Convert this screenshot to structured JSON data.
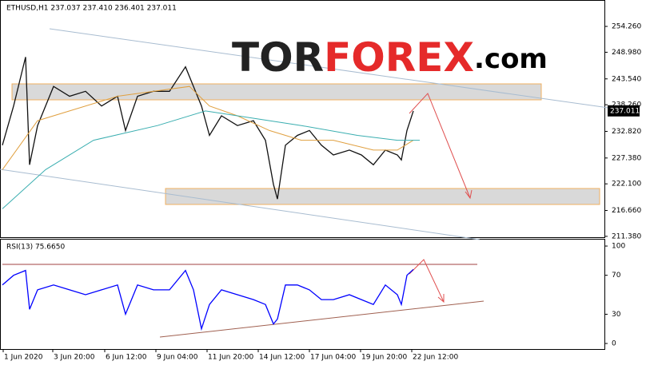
{
  "logo": {
    "parts": [
      "TOR",
      "FOREX",
      ".com"
    ]
  },
  "chart_data": [
    {
      "type": "line",
      "title": "ETHUSD,H1 237.037 237.410 236.401 237.011",
      "series": [
        {
          "color": "#111111",
          "x": [
            2,
            16,
            31,
            36,
            46,
            66,
            86,
            106,
            126,
            146,
            156,
            171,
            191,
            211,
            231,
            241,
            251,
            261,
            276,
            296,
            316,
            331,
            341,
            346,
            356,
            371,
            386,
            401,
            416,
            436,
            451,
            466,
            481,
            496,
            501,
            508,
            516
          ],
          "values": [
            230,
            238,
            248,
            226,
            234,
            242,
            240,
            241,
            238,
            240,
            233,
            240,
            241,
            241,
            246,
            242,
            238,
            232,
            236,
            234,
            235,
            231,
            222,
            219,
            230,
            232,
            233,
            230,
            228,
            229,
            228,
            226,
            229,
            228,
            227,
            233,
            237
          ]
        },
        {
          "color": "#e0a040",
          "x": [
            2,
            46,
            146,
            236,
            261,
            296,
            336,
            376,
            416,
            466,
            496,
            516
          ],
          "values": [
            225,
            235,
            240,
            242,
            238,
            236,
            233,
            231,
            231,
            229,
            229,
            231
          ]
        },
        {
          "color": "#3aaeb0",
          "x": [
            2,
            56,
            116,
            196,
            256,
            296,
            376,
            446,
            496,
            524
          ],
          "values": [
            217,
            225,
            231,
            234,
            237,
            236,
            234,
            232,
            231,
            231
          ]
        }
      ],
      "last_price": {
        "value": 237.011,
        "label": "237.011"
      },
      "xlim": [
        0,
        755
      ],
      "ylim": [
        211.2,
        259.0
      ],
      "yticks": [
        {
          "value": 254.26,
          "label": "254.260"
        },
        {
          "value": 248.98,
          "label": "248.980"
        },
        {
          "value": 243.54,
          "label": "243.540"
        },
        {
          "value": 238.26,
          "label": "238.260"
        },
        {
          "value": 232.82,
          "label": "232.820"
        },
        {
          "value": 227.38,
          "label": "227.380"
        },
        {
          "value": 222.1,
          "label": "222.100"
        },
        {
          "value": 216.66,
          "label": "216.660"
        },
        {
          "value": 211.38,
          "label": "211.380"
        }
      ]
    },
    {
      "type": "line",
      "title": "RSI(13) 75.6650",
      "series": [
        {
          "color": "#0000ff",
          "x": [
            2,
            16,
            31,
            36,
            46,
            66,
            86,
            106,
            126,
            146,
            156,
            171,
            191,
            211,
            231,
            241,
            251,
            261,
            276,
            296,
            316,
            331,
            341,
            346,
            356,
            371,
            386,
            401,
            416,
            436,
            451,
            466,
            481,
            496,
            501,
            508,
            516
          ],
          "values": [
            60,
            70,
            75,
            35,
            55,
            60,
            55,
            50,
            55,
            60,
            30,
            60,
            55,
            55,
            75,
            55,
            15,
            40,
            55,
            50,
            45,
            40,
            20,
            25,
            60,
            60,
            55,
            45,
            45,
            50,
            45,
            40,
            60,
            50,
            40,
            70,
            76
          ]
        }
      ],
      "xlim": [
        0,
        755
      ],
      "ylim": [
        -5.7,
        106.6
      ],
      "yticks": [
        100,
        70,
        30,
        0
      ],
      "xticks": [
        {
          "value": 3,
          "label": "1 Jun 2020"
        },
        {
          "value": 65,
          "label": "3 Jun 20:00"
        },
        {
          "value": 130,
          "label": "6 Jun 12:00"
        },
        {
          "value": 194,
          "label": "9 Jun 04:00"
        },
        {
          "value": 258,
          "label": "11 Jun 20:00"
        },
        {
          "value": 322,
          "label": "14 Jun 12:00"
        },
        {
          "value": 386,
          "label": "17 Jun 04:00"
        },
        {
          "value": 450,
          "label": "19 Jun 20:00"
        },
        {
          "value": 514,
          "label": "22 Jun 12:00"
        }
      ]
    }
  ]
}
